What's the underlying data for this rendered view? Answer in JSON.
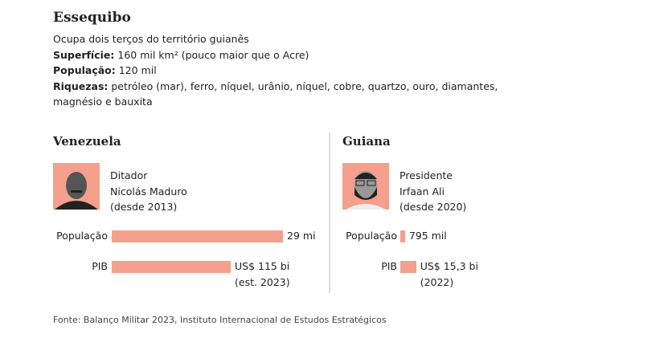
{
  "region": {
    "title": "Essequibo",
    "subtitle": "Ocupa dois terços do território guianês",
    "area_label": "Superfície:",
    "area_value": " 160 mil km² (pouco maior que o Acre)",
    "population_label": "População:",
    "population_value": " 120 mil",
    "wealth_label": "Riquezas:",
    "wealth_value": " petróleo (mar), ferro, níquel, urânio, níquel, cobre, quartzo, ouro, diamantes, magnésio e bauxita"
  },
  "bar_color": "#f4a08c",
  "labels": {
    "population": "População",
    "gdp": "PIB"
  },
  "countries": [
    {
      "name": "Venezuela",
      "role": "Ditador",
      "leader": "Nicolás Maduro",
      "since": "(desde 2013)",
      "population_thousands": 29000,
      "population_text": "29 mi",
      "gdp_billion_usd": 115,
      "gdp_text": "US$ 115 bi",
      "gdp_note": "(est. 2023)"
    },
    {
      "name": "Guiana",
      "role": "Presidente",
      "leader": "Irfaan Ali",
      "since": "(desde 2020)",
      "population_thousands": 795,
      "population_text": "795 mil",
      "gdp_billion_usd": 15.3,
      "gdp_text": "US$ 15,3 bi",
      "gdp_note": "(2022)"
    }
  ],
  "source": "Fonte: Balanço Militar 2023, Instituto Internacional de Estudos Estratégicos"
}
